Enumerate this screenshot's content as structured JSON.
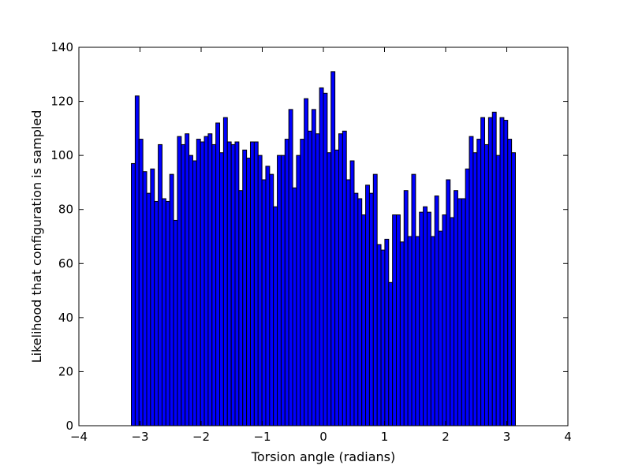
{
  "chart_data": {
    "type": "bar",
    "title": "",
    "xlabel": "Torsion angle (radians)",
    "ylabel": "Likelihood that configuration is sampled",
    "xlim": [
      -4,
      4
    ],
    "ylim": [
      0,
      140
    ],
    "xticks": [
      -4,
      -3,
      -2,
      -1,
      0,
      1,
      2,
      3,
      4
    ],
    "xtick_labels": [
      "−4",
      "−3",
      "−2",
      "−1",
      "0",
      "1",
      "2",
      "3",
      "4"
    ],
    "yticks": [
      0,
      20,
      40,
      60,
      80,
      100,
      120,
      140
    ],
    "ytick_labels": [
      "0",
      "20",
      "40",
      "60",
      "80",
      "100",
      "120",
      "140"
    ],
    "grid": false,
    "bar_color": "#0000ff",
    "bin_start": -3.1416,
    "bin_end": 3.1416,
    "values": [
      97,
      122,
      106,
      94,
      86,
      95,
      83,
      104,
      84,
      83,
      93,
      76,
      107,
      104,
      108,
      100,
      98,
      106,
      105,
      107,
      108,
      104,
      112,
      101,
      114,
      105,
      104,
      105,
      87,
      102,
      99,
      105,
      105,
      100,
      91,
      96,
      93,
      81,
      100,
      100,
      106,
      117,
      88,
      100,
      106,
      121,
      109,
      117,
      108,
      125,
      123,
      101,
      131,
      102,
      108,
      109,
      91,
      98,
      86,
      84,
      78,
      89,
      86,
      93,
      67,
      65,
      69,
      53,
      78,
      78,
      68,
      87,
      70,
      93,
      70,
      79,
      81,
      79,
      70,
      85,
      72,
      78,
      91,
      77,
      87,
      84,
      84,
      95,
      107,
      101,
      106,
      114,
      104,
      114,
      116,
      100,
      114,
      113,
      106,
      101
    ]
  }
}
